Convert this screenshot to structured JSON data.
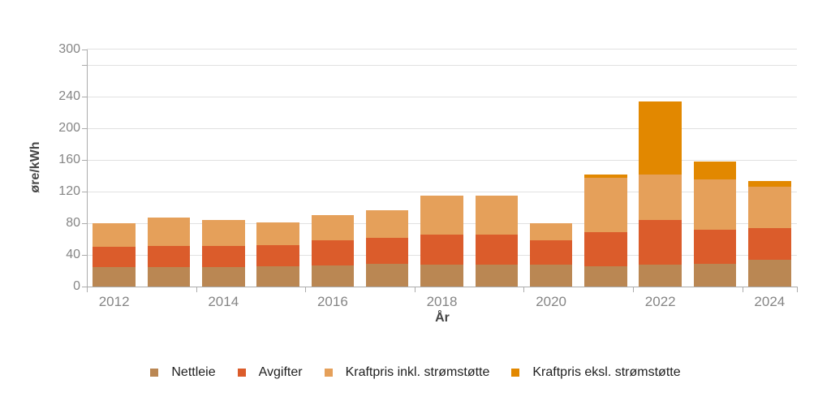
{
  "chart_data": {
    "type": "bar",
    "stacked": true,
    "title": "",
    "xlabel": "År",
    "ylabel": "øre/kWh",
    "ylim": [
      0,
      300
    ],
    "grid": true,
    "legend_position": "bottom",
    "categories": [
      "2012",
      "2013",
      "2014",
      "2015",
      "2016",
      "2017",
      "2018",
      "2019",
      "2020",
      "2021",
      "2022",
      "2023",
      "2024"
    ],
    "x_labeled_category_indices": [
      0,
      2,
      4,
      6,
      8,
      10,
      12
    ],
    "x_tick_boundary_indices": [
      0,
      2,
      4,
      6,
      8,
      10,
      12,
      13
    ],
    "y_tick_labels": [
      0,
      40,
      80,
      120,
      160,
      200,
      240,
      300
    ],
    "y_gridline_values": [
      40,
      80,
      120,
      160,
      200,
      240,
      280,
      300
    ],
    "y_tick_stub_values": [
      0,
      40,
      80,
      120,
      160,
      200,
      240,
      280,
      300
    ],
    "series": [
      {
        "name": "Nettleie",
        "color": "#ba8753",
        "values": [
          25,
          25,
          25,
          26,
          27,
          29,
          28,
          28,
          28,
          26,
          28,
          29,
          34
        ]
      },
      {
        "name": "Avgifter",
        "color": "#db5c2b",
        "values": [
          25,
          26,
          26,
          26,
          31,
          33,
          38,
          38,
          30,
          43,
          56,
          43,
          40
        ]
      },
      {
        "name": "Kraftpris inkl. strømstøtte",
        "color": "#e5a05a",
        "values": [
          30,
          36,
          33,
          29,
          32,
          34,
          49,
          49,
          22,
          68,
          58,
          63,
          52
        ]
      },
      {
        "name": "Kraftpris eksl. strømstøtte",
        "color": "#e28800",
        "values": [
          0,
          0,
          0,
          0,
          0,
          0,
          0,
          0,
          0,
          5,
          92,
          23,
          7
        ]
      }
    ],
    "totals": [
      80,
      87,
      84,
      81,
      90,
      96,
      115,
      115,
      80,
      142,
      234,
      158,
      133
    ],
    "axis_color": "#ababab",
    "gridline_color": "#e1e1e1",
    "tick_label_color": "#858585",
    "axis_title_color": "#454545",
    "legend_text_color": "#202020",
    "background_color": "#ffffff"
  }
}
